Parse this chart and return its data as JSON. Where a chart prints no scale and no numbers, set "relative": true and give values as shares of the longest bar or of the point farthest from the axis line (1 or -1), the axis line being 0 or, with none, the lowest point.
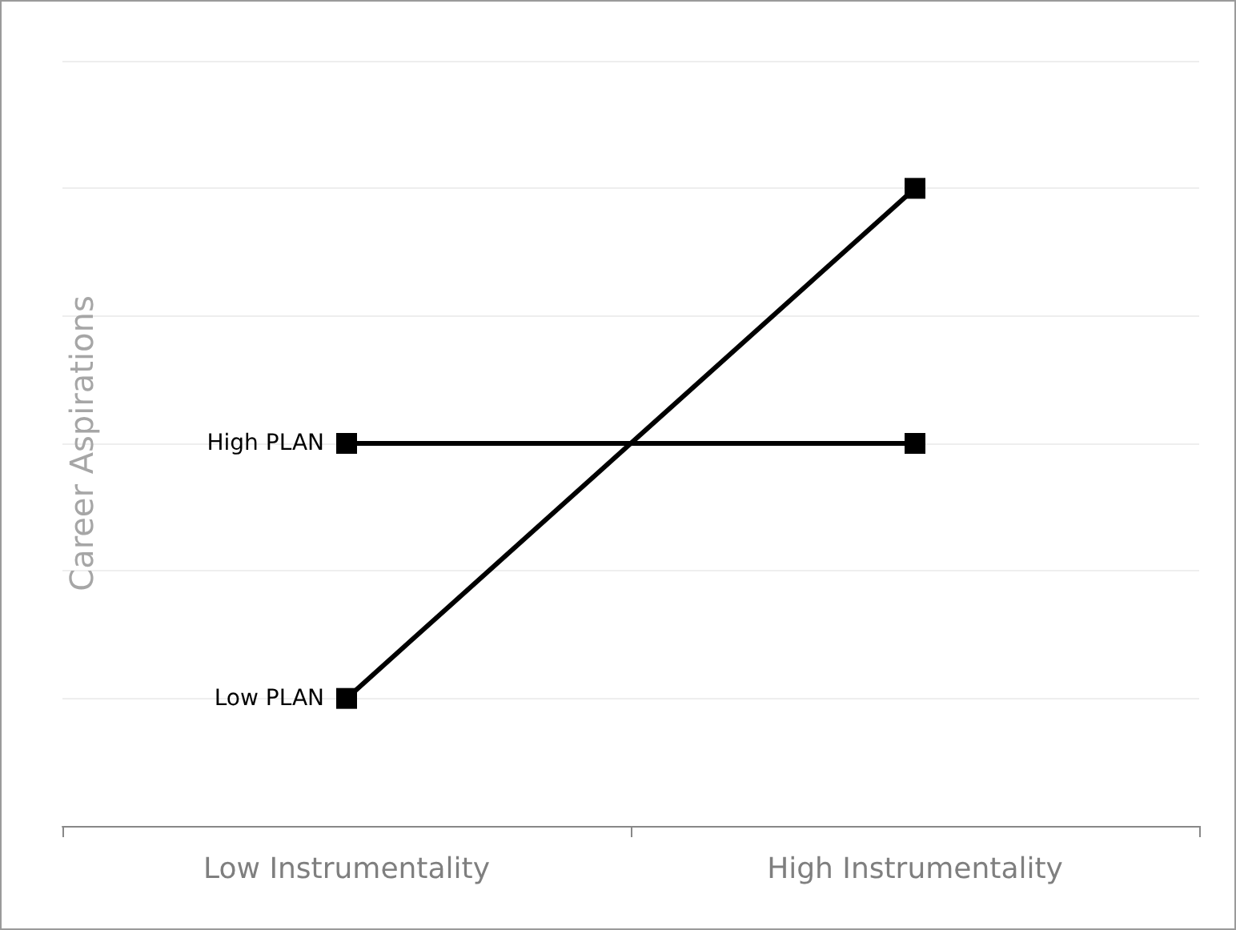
{
  "chart_data": {
    "type": "line",
    "relative": true,
    "ylabel": "Career Aspirations",
    "categories": [
      "Low Instrumentality",
      "High Instrumentality"
    ],
    "series": [
      {
        "name": "High PLAN",
        "color": "#000000",
        "values": [
          0.6,
          0.6
        ]
      },
      {
        "name": "Low PLAN",
        "color": "#000000",
        "values": [
          0.2,
          1
        ]
      }
    ],
    "grid": "y",
    "marker": "square",
    "line_style": "solid",
    "legend": false
  }
}
